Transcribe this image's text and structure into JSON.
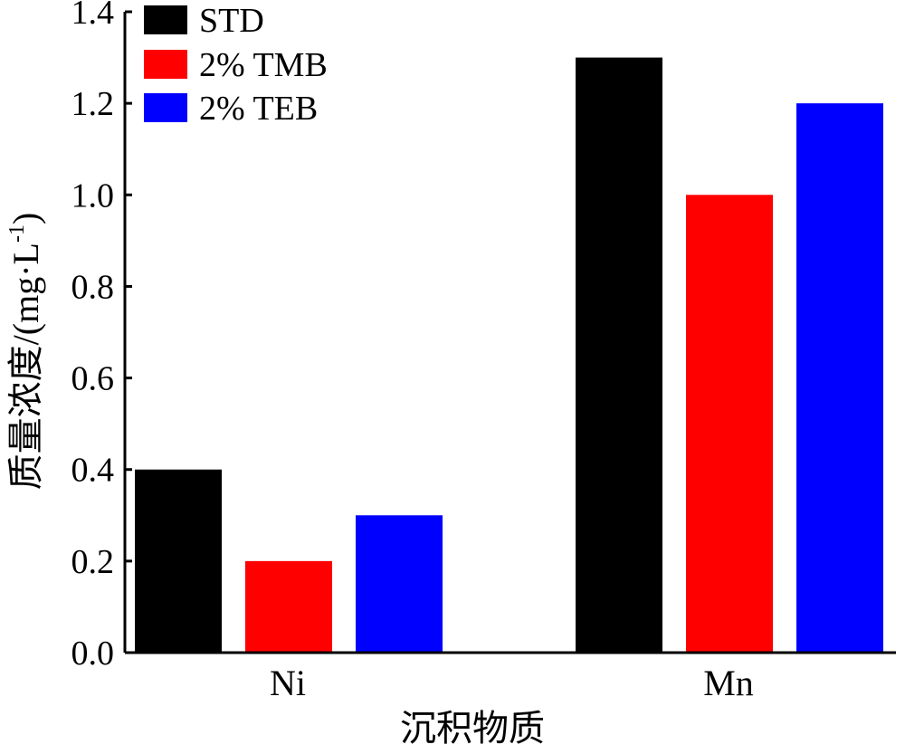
{
  "chart_data": {
    "type": "bar",
    "categories": [
      "Ni",
      "Mn"
    ],
    "series": [
      {
        "name": "STD",
        "color": "#000000",
        "values": [
          0.4,
          1.3
        ]
      },
      {
        "name": "2% TMB",
        "color": "#ff0000",
        "values": [
          0.2,
          1.0
        ]
      },
      {
        "name": "2% TEB",
        "color": "#0000ff",
        "values": [
          0.3,
          1.2
        ]
      }
    ],
    "xlabel": "沉积物质",
    "ylabel": "质量浓度/(mg·L",
    "ylabel_superscript": "-1",
    "ylabel_suffix": ")",
    "ylim": [
      0,
      1.4
    ],
    "yticks": [
      "0.0",
      "0.2",
      "0.4",
      "0.6",
      "0.8",
      "1.0",
      "1.2",
      "1.4"
    ],
    "legend_position": "top-left",
    "grid": false
  }
}
